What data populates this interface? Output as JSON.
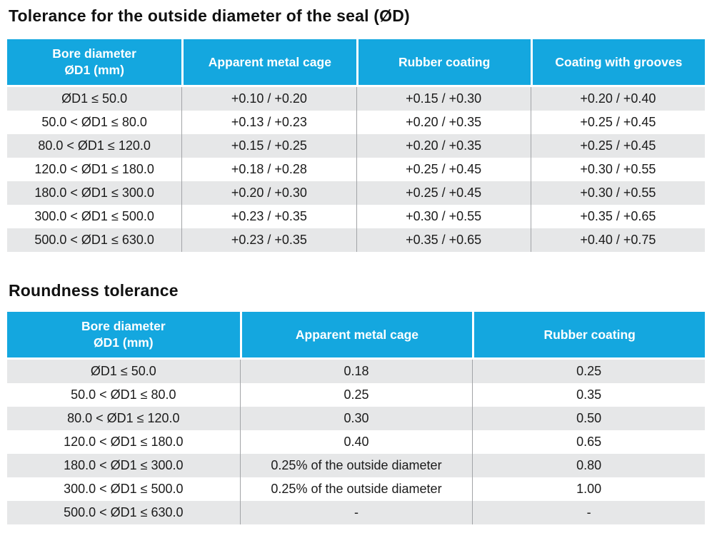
{
  "colors": {
    "header_bg": "#14A7DF",
    "header_text": "#FFFFFF",
    "row_alt_bg": "#E6E7E8",
    "row_bg": "#FFFFFF",
    "body_text": "#1B1B1B",
    "divider": "#A2A4A7",
    "title_text": "#111111"
  },
  "tables": [
    {
      "title": "Tolerance for the outside diameter of the seal (ØD)",
      "columns": [
        "Bore diameter\nØD1 (mm)",
        "Apparent metal cage",
        "Rubber coating",
        "Coating with grooves"
      ],
      "rows": [
        [
          "ØD1 ≤ 50.0",
          "+0.10 / +0.20",
          "+0.15 / +0.30",
          "+0.20 / +0.40"
        ],
        [
          "50.0 < ØD1 ≤ 80.0",
          "+0.13 / +0.23",
          "+0.20 / +0.35",
          "+0.25 / +0.45"
        ],
        [
          "80.0 < ØD1 ≤ 120.0",
          "+0.15 / +0.25",
          "+0.20 / +0.35",
          "+0.25 / +0.45"
        ],
        [
          "120.0 < ØD1 ≤ 180.0",
          "+0.18 / +0.28",
          "+0.25 / +0.45",
          "+0.30 / +0.55"
        ],
        [
          "180.0 < ØD1 ≤ 300.0",
          "+0.20 / +0.30",
          "+0.25 / +0.45",
          "+0.30 / +0.55"
        ],
        [
          "300.0 < ØD1 ≤ 500.0",
          "+0.23 / +0.35",
          "+0.30 / +0.55",
          "+0.35 / +0.65"
        ],
        [
          "500.0 < ØD1 ≤ 630.0",
          "+0.23 / +0.35",
          "+0.35 / +0.65",
          "+0.40 / +0.75"
        ]
      ]
    },
    {
      "title": "Roundness tolerance",
      "columns": [
        "Bore diameter\nØD1 (mm)",
        "Apparent metal cage",
        "Rubber coating"
      ],
      "rows": [
        [
          "ØD1 ≤ 50.0",
          "0.18",
          "0.25"
        ],
        [
          "50.0 < ØD1 ≤ 80.0",
          "0.25",
          "0.35"
        ],
        [
          "80.0 < ØD1 ≤ 120.0",
          "0.30",
          "0.50"
        ],
        [
          "120.0 < ØD1 ≤ 180.0",
          "0.40",
          "0.65"
        ],
        [
          "180.0 < ØD1 ≤ 300.0",
          "0.25% of the outside diameter",
          "0.80"
        ],
        [
          "300.0 < ØD1 ≤ 500.0",
          "0.25% of the outside diameter",
          "1.00"
        ],
        [
          "500.0 < ØD1 ≤ 630.0",
          "-",
          "-"
        ]
      ]
    }
  ]
}
